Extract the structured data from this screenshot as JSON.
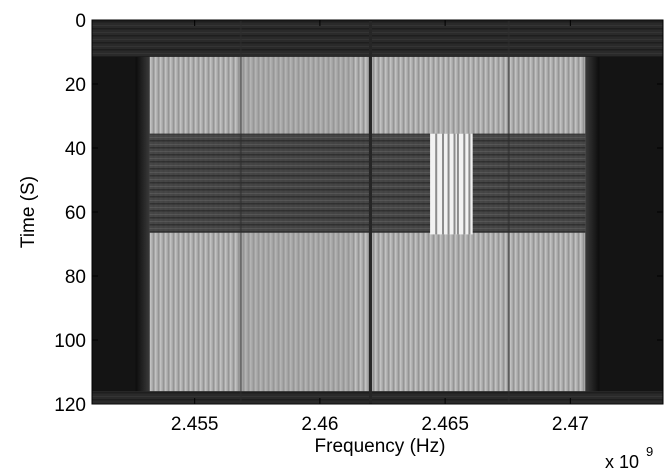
{
  "chart_data": {
    "type": "heatmap",
    "title": "",
    "xlabel": "Frequency (Hz)",
    "ylabel": "Time (S)",
    "x_multiplier": {
      "base": "x 10",
      "exponent": "9"
    },
    "xlim": [
      2450900000.0,
      2473700000.0
    ],
    "ylim": [
      0,
      120
    ],
    "y_reversed": true,
    "x_ticks": [
      {
        "value": 2455000000.0,
        "label": "2.455"
      },
      {
        "value": 2460000000.0,
        "label": "2.46"
      },
      {
        "value": 2465000000.0,
        "label": "2.465"
      },
      {
        "value": 2470000000.0,
        "label": "2.47"
      }
    ],
    "y_ticks": [
      {
        "value": 0,
        "label": "0"
      },
      {
        "value": 20,
        "label": "20"
      },
      {
        "value": 40,
        "label": "40"
      },
      {
        "value": 60,
        "label": "60"
      },
      {
        "value": 80,
        "label": "80"
      },
      {
        "value": 100,
        "label": "100"
      },
      {
        "value": 120,
        "label": "120"
      }
    ],
    "colormap": "gray",
    "regions": [
      {
        "name": "background",
        "x": [
          2450900000.0,
          2473700000.0
        ],
        "y": [
          0,
          120
        ],
        "intensity": 0.08
      },
      {
        "name": "signal-band",
        "x": [
          2453200000.0,
          2470600000.0
        ],
        "y": [
          11.5,
          116
        ],
        "intensity": 0.7
      },
      {
        "name": "interference-band",
        "x": [
          2453200000.0,
          2470600000.0
        ],
        "y": [
          35.5,
          66.5
        ],
        "intensity": 0.35
      },
      {
        "name": "bright-burst",
        "x": [
          2464400000.0,
          2466100000.0
        ],
        "y": [
          35.5,
          67
        ],
        "intensity": 0.95
      },
      {
        "name": "vertical-dark-line",
        "x": [
          2462000000.0,
          2462200000.0
        ],
        "y": [
          0,
          120
        ],
        "intensity": 0.15
      }
    ]
  }
}
